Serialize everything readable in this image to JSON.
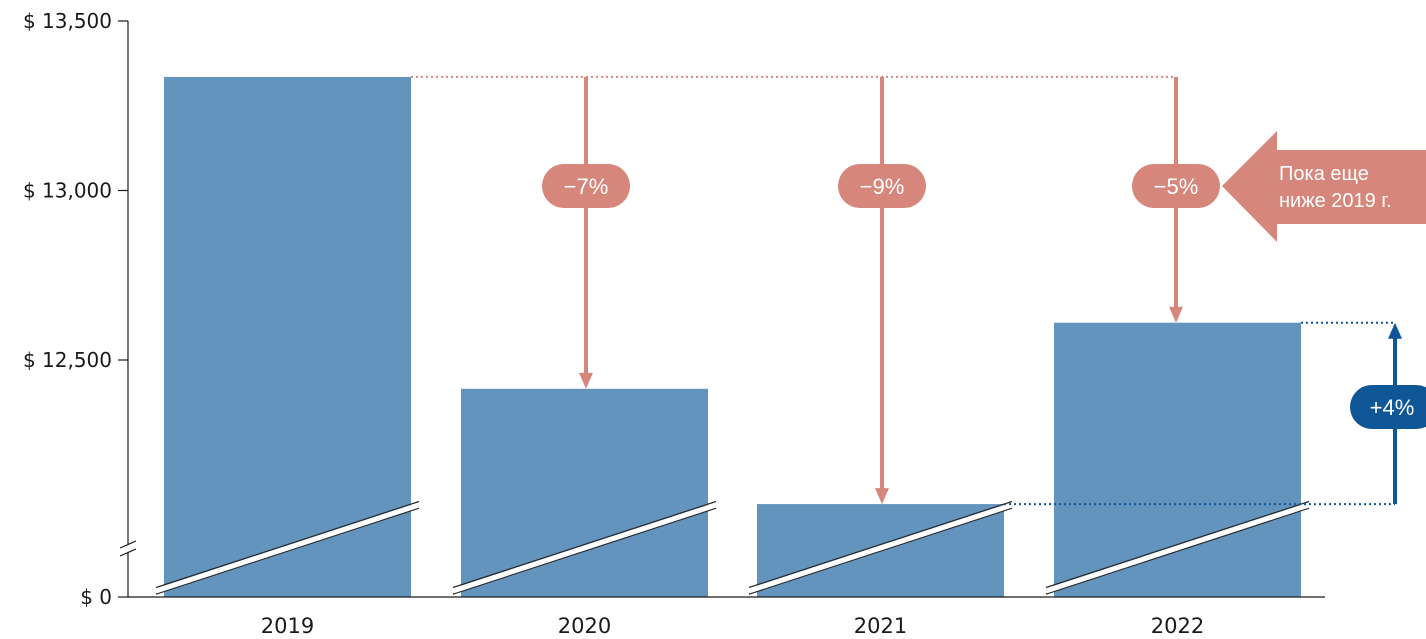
{
  "chart_data": {
    "type": "bar",
    "categories": [
      "2019",
      "2020",
      "2021",
      "2022"
    ],
    "values": [
      13335,
      12415,
      12075,
      12610
    ],
    "y_axis_broken": true,
    "y_break_from": 0,
    "y_break_to": 11750,
    "y_ticks": [
      {
        "value": 13500,
        "label": "$ 13,500"
      },
      {
        "value": 13000,
        "label": "$ 13,000"
      },
      {
        "value": 12500,
        "label": "$ 12,500"
      },
      {
        "value": 0,
        "label": "$ 0"
      }
    ],
    "changes_vs_2019": [
      {
        "category": "2020",
        "label": "−7%"
      },
      {
        "category": "2021",
        "label": "−9%"
      },
      {
        "category": "2022",
        "label": "−5%"
      }
    ],
    "change_2022_vs_2021": {
      "label": "+4%"
    },
    "callout": {
      "line1": "Пока еще",
      "line2": "ниже 2019 г."
    },
    "colors": {
      "bar": "#6394bd",
      "decline": "#d6867a",
      "increase": "#0e5696",
      "axis": "#1a1a1a"
    }
  }
}
